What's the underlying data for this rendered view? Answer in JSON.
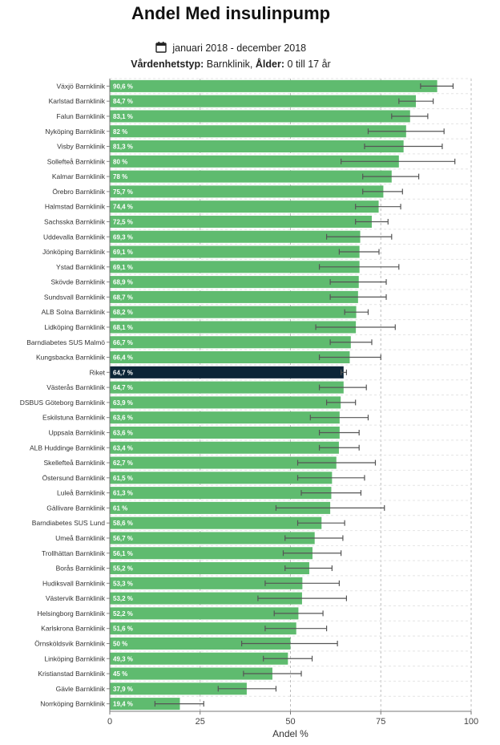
{
  "header": {
    "title": "Andel Med insulinpump",
    "period": "januari 2018 - december 2018",
    "filter_label_1": "Vårdenhetstyp:",
    "filter_value_1": "Barnklinik,",
    "filter_label_2": "Ålder:",
    "filter_value_2": "0 till 17 år"
  },
  "colors": {
    "bar": "#5fbb6f",
    "highlight_bar": "#0c2537",
    "error_bar": "#555555",
    "grid": "#bbbbbb"
  },
  "chart_data": {
    "type": "bar",
    "orientation": "horizontal",
    "xlabel": "Andel %",
    "xlim": [
      0,
      100
    ],
    "xticks": [
      0,
      25,
      50,
      75,
      100
    ],
    "grid": "vertical dashed",
    "highlight_category": "Riket",
    "categories": [
      "Växjö Barnklinik",
      "Karlstad Barnklinik",
      "Falun Barnklinik",
      "Nyköping Barnklinik",
      "Visby Barnklinik",
      "Sollefteå Barnklinik",
      "Kalmar Barnklinik",
      "Örebro Barnklinik",
      "Halmstad Barnklinik",
      "Sachsska Barnklinik",
      "Uddevalla Barnklinik",
      "Jönköping Barnklinik",
      "Ystad Barnklinik",
      "Skövde Barnklinik",
      "Sundsvall Barnklinik",
      "ALB Solna Barnklinik",
      "Lidköping Barnklinik",
      "Barndiabetes SUS Malmö",
      "Kungsbacka Barnklinik",
      "Riket",
      "Västerås Barnklinik",
      "DSBUS Göteborg Barnklinik",
      "Eskilstuna Barnklinik",
      "Uppsala Barnklinik",
      "ALB Huddinge Barnklinik",
      "Skellefteå Barnklinik",
      "Östersund Barnklinik",
      "Luleå Barnklinik",
      "Gällivare Barnklinik",
      "Barndiabetes SUS Lund",
      "Umeå Barnklinik",
      "Trollhättan Barnklinik",
      "Borås Barnklinik",
      "Hudiksvall Barnklinik",
      "Västervik Barnklinik",
      "Helsingborg Barnklinik",
      "Karlskrona Barnklinik",
      "Örnsköldsvik Barnklinik",
      "Linköping Barnklinik",
      "Kristianstad Barnklinik",
      "Gävle Barnklinik",
      "Norrköping Barnklinik"
    ],
    "values": [
      90.6,
      84.7,
      83.1,
      82,
      81.3,
      80,
      78,
      75.7,
      74.4,
      72.5,
      69.3,
      69.1,
      69.1,
      68.9,
      68.7,
      68.2,
      68.1,
      66.7,
      66.4,
      64.7,
      64.7,
      63.9,
      63.6,
      63.6,
      63.4,
      62.7,
      61.5,
      61.3,
      61,
      58.6,
      56.7,
      56.1,
      55.2,
      53.3,
      53.2,
      52.2,
      51.6,
      50,
      49.3,
      45,
      37.9,
      19.4
    ],
    "value_labels": [
      "90,6 %",
      "84,7 %",
      "83,1 %",
      "82 %",
      "81,3 %",
      "80 %",
      "78 %",
      "75,7 %",
      "74,4 %",
      "72,5 %",
      "69,3 %",
      "69,1 %",
      "69,1 %",
      "68,9 %",
      "68,7 %",
      "68,2 %",
      "68,1 %",
      "66,7 %",
      "66,4 %",
      "64,7 %",
      "64,7 %",
      "63,9 %",
      "63,6 %",
      "63,6 %",
      "63,4 %",
      "62,7 %",
      "61,5 %",
      "61,3 %",
      "61 %",
      "58,6 %",
      "56,7 %",
      "56,1 %",
      "55,2 %",
      "53,3 %",
      "53,2 %",
      "52,2 %",
      "51,6 %",
      "50 %",
      "49,3 %",
      "45 %",
      "37,9 %",
      "19,4 %"
    ],
    "ci_low": [
      86,
      80,
      78,
      71.5,
      70.5,
      64,
      70,
      70,
      68,
      68,
      60,
      63.5,
      58,
      61,
      61,
      65,
      57,
      61,
      58,
      64,
      58,
      60,
      55.5,
      58,
      58,
      52,
      52,
      53,
      46,
      52,
      48.5,
      48,
      48.5,
      43,
      41,
      45.5,
      43,
      36.5,
      42.5,
      37,
      30,
      12.5
    ],
    "ci_high": [
      95,
      89.5,
      88,
      92.5,
      92,
      95.5,
      85.5,
      81,
      80.5,
      77,
      78,
      74.5,
      80,
      76.5,
      76.5,
      71.5,
      79,
      72.5,
      75,
      65.5,
      71,
      68,
      71.5,
      69,
      69,
      73.5,
      70.5,
      69.5,
      76,
      65,
      64.5,
      64,
      61.5,
      63.5,
      65.5,
      59,
      60,
      63,
      56,
      53,
      46,
      26
    ]
  }
}
